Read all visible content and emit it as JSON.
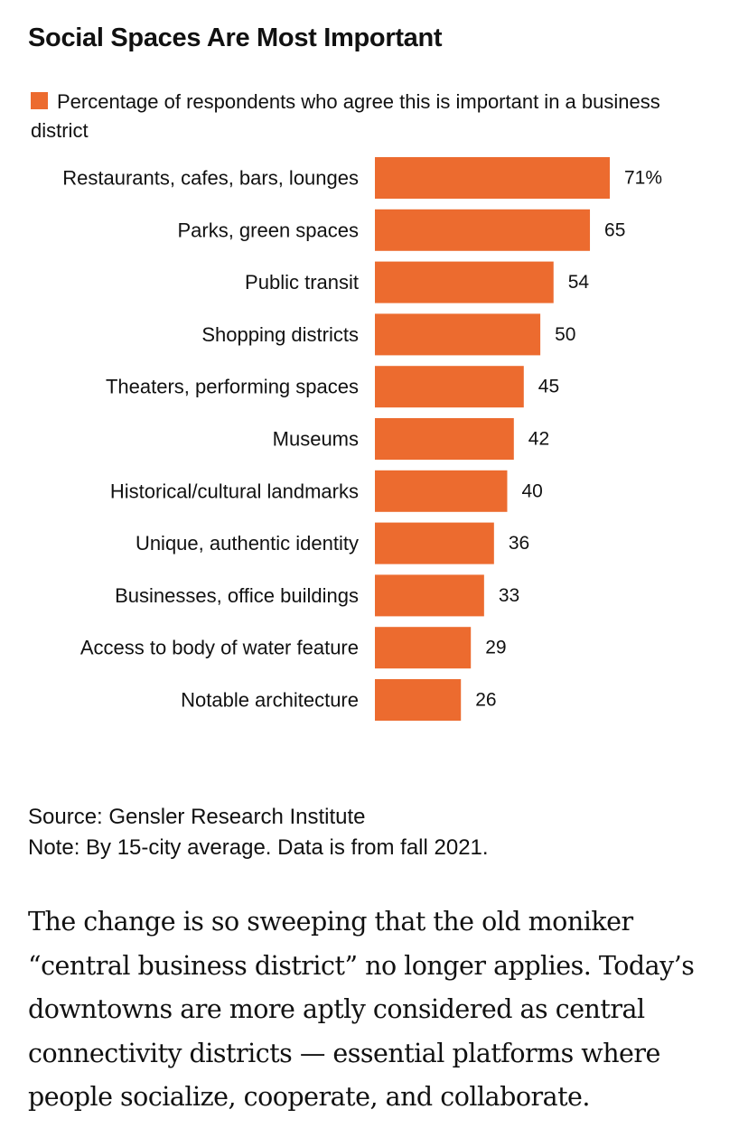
{
  "title": "Social Spaces Are Most Important",
  "legend": {
    "label": "Percentage of respondents who agree this is important in a business district",
    "color": "#ec6b2f"
  },
  "chart_data": {
    "type": "bar",
    "orientation": "horizontal",
    "categories": [
      "Restaurants, cafes, bars, lounges",
      "Parks, green spaces",
      "Public transit",
      "Shopping districts",
      "Theaters, performing spaces",
      "Museums",
      "Historical/cultural landmarks",
      "Unique, authentic identity",
      "Businesses, office buildings",
      "Access to body of water feature",
      "Notable architecture"
    ],
    "values": [
      71,
      65,
      54,
      50,
      45,
      42,
      40,
      36,
      33,
      29,
      26
    ],
    "value_labels": [
      "71%",
      "65",
      "54",
      "50",
      "45",
      "42",
      "40",
      "36",
      "33",
      "29",
      "26"
    ],
    "series": [
      {
        "name": "Percentage of respondents who agree this is important in a business district",
        "values": [
          71,
          65,
          54,
          50,
          45,
          42,
          40,
          36,
          33,
          29,
          26
        ]
      }
    ],
    "bar_color": "#ec6b2f",
    "xlim": [
      0,
      71
    ],
    "grid": false,
    "legend_position": "top-left"
  },
  "source": "Source: Gensler Research Institute",
  "note": "Note: By 15-city average. Data is from fall 2021.",
  "body_text": "The change is so sweeping that the old moniker “central business district” no longer applies. Today’s downtowns are more aptly considered as central connectivity districts — essential platforms where people socialize, cooperate, and collaborate."
}
